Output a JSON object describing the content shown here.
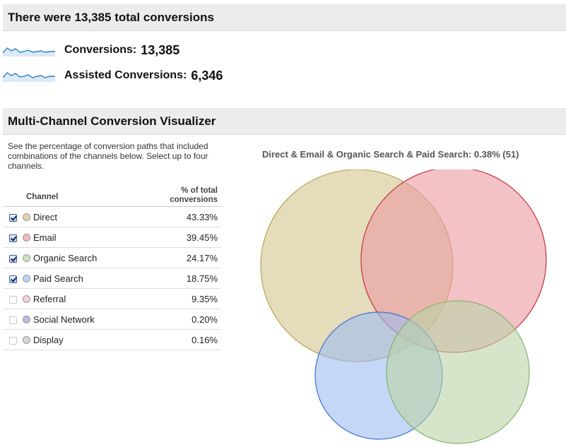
{
  "summary": {
    "title": "There were 13,385 total conversions",
    "metrics": [
      {
        "label": "Conversions:",
        "value": "13,385",
        "icon": "sparkline-icon"
      },
      {
        "label": "Assisted Conversions:",
        "value": "6,346",
        "icon": "sparkline-icon"
      }
    ]
  },
  "visualizer": {
    "title": "Multi-Channel Conversion Visualizer",
    "description": "See the percentage of conversion paths that included combinations of the channels below. Select up to four channels.",
    "table": {
      "headers": {
        "channel": "Channel",
        "pct_line1": "% of total",
        "pct_line2": "conversions"
      },
      "rows": [
        {
          "name": "Direct",
          "pct": "43.33%",
          "checked": true,
          "color": "#e6d5a4"
        },
        {
          "name": "Email",
          "pct": "39.45%",
          "checked": true,
          "color": "#f3b8bd"
        },
        {
          "name": "Organic Search",
          "pct": "24.17%",
          "checked": true,
          "color": "#cfe3bf"
        },
        {
          "name": "Paid Search",
          "pct": "18.75%",
          "checked": true,
          "color": "#bcd4f4"
        },
        {
          "name": "Referral",
          "pct": "9.35%",
          "checked": false,
          "color": "#f0d0d0"
        },
        {
          "name": "Social Network",
          "pct": "0.20%",
          "checked": false,
          "color": "#c9b6e6"
        },
        {
          "name": "Display",
          "pct": "0.16%",
          "checked": false,
          "color": "#d4d8de"
        }
      ]
    },
    "venn": {
      "caption": "Direct & Email & Organic Search & Paid Search: 0.38% (51)",
      "colors": {
        "direct": {
          "fill": "#d4c48e",
          "stroke": "#b8a357"
        },
        "email": {
          "fill": "#eb9aa1",
          "stroke": "#c4323c"
        },
        "organic_search": {
          "fill": "#bad4a6",
          "stroke": "#87b06a"
        },
        "paid_search": {
          "fill": "#9dbdf0",
          "stroke": "#3f72cf"
        }
      }
    }
  }
}
